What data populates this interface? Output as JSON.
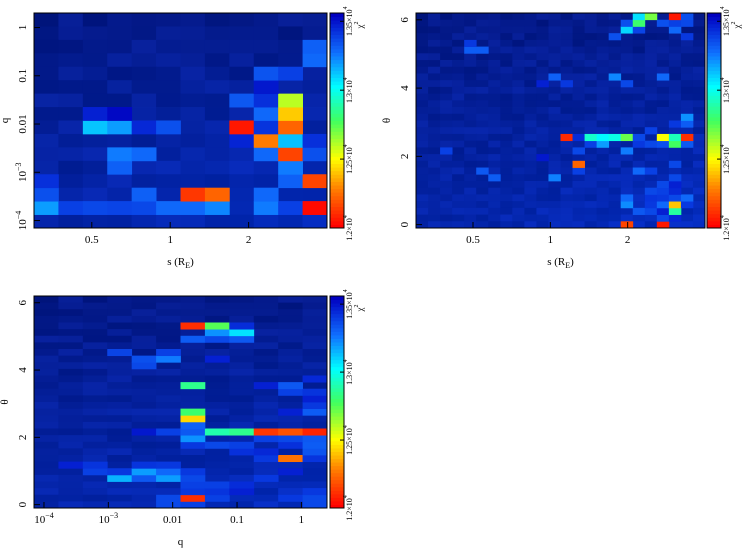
{
  "chart_data": [
    {
      "type": "heatmap",
      "id": "s-q",
      "xlabel": "s (R",
      "xlabel_sub": "E",
      "xlabel_close": ")",
      "ylabel": "q",
      "xscale": "log",
      "yscale": "log",
      "xlim": [
        0.3,
        4.0
      ],
      "ylim": [
        7e-05,
        2.0
      ],
      "xticks": [
        {
          "v": 0.5,
          "label": "0.5"
        },
        {
          "v": 1,
          "label": "1"
        },
        {
          "v": 2,
          "label": "2"
        }
      ],
      "yticks": [
        {
          "v": 1,
          "label": "1"
        },
        {
          "v": 0.1,
          "label": "0.1"
        },
        {
          "v": 0.01,
          "label": "0.01"
        },
        {
          "v": 0.001,
          "label": "10",
          "sup": "−3"
        },
        {
          "v": 0.0001,
          "label": "10",
          "sup": "−4"
        }
      ],
      "nx": 12,
      "ny": 16,
      "cells": [
        [
          0,
          1,
          13200
        ],
        [
          1,
          1,
          13400
        ],
        [
          2,
          1,
          13380
        ],
        [
          3,
          1,
          13390
        ],
        [
          4,
          1,
          13380
        ],
        [
          5,
          1,
          13300
        ],
        [
          6,
          1,
          13300
        ],
        [
          7,
          1,
          13240
        ],
        [
          9,
          1,
          13260
        ],
        [
          10,
          1,
          13400
        ],
        [
          11,
          1,
          12020
        ],
        [
          0,
          2,
          13360
        ],
        [
          4,
          2,
          13320
        ],
        [
          6,
          2,
          12120
        ],
        [
          7,
          2,
          12220
        ],
        [
          9,
          2,
          13300
        ],
        [
          0,
          3,
          13440
        ],
        [
          10,
          3,
          13320
        ],
        [
          11,
          3,
          12150
        ],
        [
          3,
          4,
          13320
        ],
        [
          10,
          4,
          13260
        ],
        [
          3,
          5,
          13260
        ],
        [
          4,
          5,
          13300
        ],
        [
          9,
          5,
          13300
        ],
        [
          10,
          5,
          12150
        ],
        [
          11,
          5,
          13360
        ],
        [
          8,
          6,
          13470
        ],
        [
          9,
          6,
          12270
        ],
        [
          10,
          6,
          13140
        ],
        [
          11,
          6,
          13440
        ],
        [
          2,
          7,
          13130
        ],
        [
          3,
          7,
          13200
        ],
        [
          4,
          7,
          13460
        ],
        [
          5,
          7,
          13360
        ],
        [
          8,
          7,
          12050
        ],
        [
          9,
          7,
          13430
        ],
        [
          10,
          7,
          12220
        ],
        [
          2,
          8,
          13480
        ],
        [
          3,
          8,
          13540
        ],
        [
          9,
          8,
          13300
        ],
        [
          10,
          8,
          12410
        ],
        [
          8,
          9,
          13340
        ],
        [
          9,
          9,
          13440
        ],
        [
          10,
          9,
          12600
        ],
        [
          9,
          10,
          13500
        ],
        [
          9,
          11,
          13350
        ],
        [
          10,
          11,
          13400
        ],
        [
          11,
          12,
          13300
        ],
        [
          11,
          13,
          13320
        ]
      ]
    },
    {
      "type": "heatmap",
      "id": "s-theta",
      "xlabel": "s (R",
      "xlabel_sub": "E",
      "xlabel_close": ")",
      "ylabel": "θ",
      "xscale": "log",
      "yscale": "linear",
      "xlim": [
        0.3,
        4.0
      ],
      "ylim": [
        -0.1,
        6.2
      ],
      "xticks": [
        {
          "v": 0.5,
          "label": "0.5"
        },
        {
          "v": 1,
          "label": "1"
        },
        {
          "v": 2,
          "label": "2"
        }
      ],
      "yticks": [
        {
          "v": 0,
          "label": "0"
        },
        {
          "v": 2,
          "label": "2"
        },
        {
          "v": 4,
          "label": "4"
        },
        {
          "v": 6,
          "label": "6"
        }
      ],
      "nx": 24,
      "ny": 32,
      "cells": [
        [
          17,
          0,
          12150
        ],
        [
          20,
          0,
          12050
        ],
        [
          20,
          1,
          13380
        ],
        [
          21,
          1,
          13460
        ],
        [
          18,
          2,
          13340
        ],
        [
          19,
          2,
          13380
        ],
        [
          20,
          2,
          13480
        ],
        [
          21,
          2,
          12880
        ],
        [
          17,
          3,
          13230
        ],
        [
          19,
          3,
          13420
        ],
        [
          20,
          3,
          13300
        ],
        [
          21,
          3,
          12400
        ],
        [
          22,
          3,
          13420
        ],
        [
          17,
          4,
          13300
        ],
        [
          19,
          4,
          13430
        ],
        [
          20,
          4,
          13420
        ],
        [
          21,
          4,
          13380
        ],
        [
          22,
          4,
          13300
        ],
        [
          19,
          5,
          13380
        ],
        [
          20,
          5,
          13400
        ],
        [
          21,
          5,
          13460
        ],
        [
          20,
          6,
          13380
        ],
        [
          21,
          6,
          13480
        ],
        [
          6,
          7,
          13330
        ],
        [
          11,
          7,
          13250
        ],
        [
          21,
          7,
          13380
        ],
        [
          5,
          8,
          13340
        ],
        [
          13,
          8,
          13400
        ],
        [
          18,
          8,
          13300
        ],
        [
          19,
          8,
          13400
        ],
        [
          13,
          9,
          12220
        ],
        [
          21,
          9,
          13380
        ],
        [
          10,
          10,
          13500
        ],
        [
          2,
          11,
          13400
        ],
        [
          13,
          11,
          13380
        ],
        [
          17,
          11,
          13260
        ],
        [
          14,
          12,
          13400
        ],
        [
          15,
          12,
          13200
        ],
        [
          18,
          12,
          13420
        ],
        [
          19,
          12,
          13380
        ],
        [
          20,
          12,
          13360
        ],
        [
          21,
          12,
          12780
        ],
        [
          22,
          12,
          13340
        ],
        [
          12,
          13,
          12090
        ],
        [
          13,
          13,
          13450
        ],
        [
          14,
          13,
          12950
        ],
        [
          15,
          13,
          13040
        ],
        [
          16,
          13,
          12990
        ],
        [
          17,
          13,
          12720
        ],
        [
          18,
          13,
          13380
        ],
        [
          20,
          13,
          12500
        ],
        [
          21,
          13,
          12920
        ],
        [
          22,
          13,
          12100
        ],
        [
          19,
          14,
          13400
        ],
        [
          21,
          15,
          13420
        ],
        [
          22,
          15,
          13330
        ],
        [
          22,
          16,
          13220
        ],
        [
          10,
          21,
          13480
        ],
        [
          12,
          21,
          13420
        ],
        [
          17,
          21,
          13380
        ],
        [
          11,
          22,
          13320
        ],
        [
          16,
          22,
          13240
        ],
        [
          20,
          22,
          13300
        ],
        [
          4,
          26,
          13330
        ],
        [
          5,
          26,
          13330
        ],
        [
          4,
          27,
          13420
        ],
        [
          16,
          28,
          13360
        ],
        [
          22,
          28,
          13420
        ],
        [
          17,
          29,
          13100
        ],
        [
          18,
          29,
          13390
        ],
        [
          21,
          29,
          13300
        ],
        [
          17,
          30,
          13360
        ],
        [
          18,
          30,
          12800
        ],
        [
          20,
          30,
          13360
        ],
        [
          21,
          30,
          13400
        ],
        [
          22,
          30,
          13380
        ],
        [
          18,
          31,
          13080
        ],
        [
          19,
          31,
          12700
        ],
        [
          21,
          31,
          12050
        ],
        [
          22,
          31,
          13360
        ]
      ]
    },
    {
      "type": "heatmap",
      "id": "q-theta",
      "xlabel": "q",
      "ylabel": "θ",
      "xscale": "log",
      "yscale": "linear",
      "xlim": [
        7e-05,
        2.5
      ],
      "ylim": [
        -0.1,
        6.2
      ],
      "xticks": [
        {
          "v": 0.0001,
          "label": "10",
          "sup": "−4"
        },
        {
          "v": 0.001,
          "label": "10",
          "sup": "−3"
        },
        {
          "v": 0.01,
          "label": "0.01"
        },
        {
          "v": 0.1,
          "label": "0.1"
        },
        {
          "v": 1,
          "label": "1"
        }
      ],
      "yticks": [
        {
          "v": 0,
          "label": "0"
        },
        {
          "v": 2,
          "label": "2"
        },
        {
          "v": 4,
          "label": "4"
        },
        {
          "v": 6,
          "label": "6"
        }
      ],
      "nx": 12,
      "ny": 32,
      "cells": [
        [
          5,
          0,
          13380
        ],
        [
          6,
          0,
          13400
        ],
        [
          11,
          0,
          13380
        ],
        [
          5,
          1,
          13380
        ],
        [
          6,
          1,
          12100
        ],
        [
          7,
          1,
          13400
        ],
        [
          10,
          1,
          13420
        ],
        [
          11,
          1,
          13380
        ],
        [
          6,
          2,
          13420
        ],
        [
          7,
          2,
          13430
        ],
        [
          8,
          2,
          13480
        ],
        [
          11,
          2,
          13420
        ],
        [
          6,
          3,
          13400
        ],
        [
          7,
          3,
          13400
        ],
        [
          8,
          3,
          13450
        ],
        [
          3,
          4,
          13160
        ],
        [
          4,
          4,
          13340
        ],
        [
          5,
          4,
          13200
        ],
        [
          6,
          4,
          13380
        ],
        [
          9,
          4,
          13420
        ],
        [
          2,
          5,
          13400
        ],
        [
          3,
          5,
          13420
        ],
        [
          4,
          5,
          13200
        ],
        [
          5,
          5,
          13300
        ],
        [
          6,
          5,
          13420
        ],
        [
          10,
          5,
          13480
        ],
        [
          1,
          6,
          13480
        ],
        [
          2,
          6,
          13430
        ],
        [
          4,
          6,
          13430
        ],
        [
          5,
          6,
          13420
        ],
        [
          9,
          7,
          13420
        ],
        [
          10,
          7,
          12250
        ],
        [
          11,
          7,
          13430
        ],
        [
          8,
          8,
          13440
        ],
        [
          9,
          8,
          13460
        ],
        [
          11,
          8,
          13350
        ],
        [
          6,
          9,
          13420
        ],
        [
          7,
          9,
          13380
        ],
        [
          8,
          9,
          13400
        ],
        [
          10,
          9,
          13440
        ],
        [
          11,
          9,
          13330
        ],
        [
          6,
          10,
          13220
        ],
        [
          9,
          10,
          13400
        ],
        [
          10,
          10,
          13380
        ],
        [
          11,
          10,
          13340
        ],
        [
          4,
          11,
          13500
        ],
        [
          5,
          11,
          13400
        ],
        [
          6,
          11,
          13340
        ],
        [
          7,
          11,
          12900
        ],
        [
          8,
          11,
          12850
        ],
        [
          9,
          11,
          12120
        ],
        [
          10,
          11,
          12180
        ],
        [
          11,
          11,
          12080
        ],
        [
          6,
          12,
          13320
        ],
        [
          6,
          13,
          12430
        ],
        [
          6,
          14,
          12800
        ],
        [
          10,
          14,
          13480
        ],
        [
          11,
          14,
          13330
        ],
        [
          11,
          15,
          13420
        ],
        [
          11,
          16,
          13480
        ],
        [
          10,
          17,
          13400
        ],
        [
          11,
          17,
          13430
        ],
        [
          6,
          18,
          12850
        ],
        [
          9,
          18,
          13480
        ],
        [
          10,
          18,
          13340
        ],
        [
          11,
          19,
          13460
        ],
        [
          4,
          21,
          13380
        ],
        [
          4,
          22,
          13360
        ],
        [
          5,
          22,
          13260
        ],
        [
          7,
          22,
          13480
        ],
        [
          3,
          23,
          13390
        ],
        [
          5,
          23,
          13400
        ],
        [
          6,
          25,
          13330
        ],
        [
          7,
          25,
          13380
        ],
        [
          8,
          25,
          13340
        ],
        [
          7,
          26,
          13220
        ],
        [
          8,
          26,
          13080
        ],
        [
          6,
          27,
          12100
        ],
        [
          7,
          27,
          12750
        ],
        [
          8,
          27,
          13450
        ]
      ]
    }
  ],
  "colorbar": {
    "symbol": "χ",
    "symbol_sup": "2",
    "vmin": 12000,
    "vmax": 13560,
    "ticks": [
      {
        "v": 12000,
        "label": "1.2×10",
        "sup": "4"
      },
      {
        "v": 12500,
        "label": "1.25×10",
        "sup": "4"
      },
      {
        "v": 13000,
        "label": "1.3×10",
        "sup": "4"
      },
      {
        "v": 13500,
        "label": "1.35×10",
        "sup": "4"
      }
    ]
  }
}
